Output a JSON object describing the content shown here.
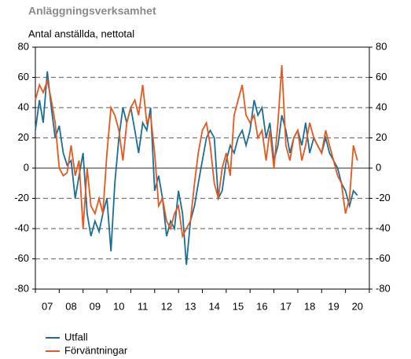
{
  "chart_data": {
    "type": "line",
    "title": "Anläggningsverksamhet",
    "subtitle": "Antal anställda, nettotal",
    "x": [
      2007,
      2007.17,
      2007.33,
      2007.5,
      2007.67,
      2007.83,
      2008,
      2008.17,
      2008.33,
      2008.5,
      2008.67,
      2008.83,
      2009,
      2009.17,
      2009.33,
      2009.5,
      2009.67,
      2009.83,
      2010,
      2010.17,
      2010.33,
      2010.5,
      2010.67,
      2010.83,
      2011,
      2011.17,
      2011.33,
      2011.5,
      2011.67,
      2011.83,
      2012,
      2012.17,
      2012.33,
      2012.5,
      2012.67,
      2012.83,
      2013,
      2013.17,
      2013.33,
      2013.5,
      2013.67,
      2013.83,
      2014,
      2014.17,
      2014.33,
      2014.5,
      2014.67,
      2014.83,
      2015,
      2015.17,
      2015.33,
      2015.5,
      2015.67,
      2015.83,
      2016,
      2016.17,
      2016.33,
      2016.5,
      2016.67,
      2016.83,
      2017,
      2017.17,
      2017.33,
      2017.5,
      2017.67,
      2017.83,
      2018,
      2018.17,
      2018.33,
      2018.5,
      2018.67,
      2018.83,
      2019,
      2019.17,
      2019.33,
      2019.5,
      2019.67,
      2019.83,
      2020,
      2020.17,
      2020.33,
      2020.5
    ],
    "series": [
      {
        "name": "Utfall",
        "color": "#1a6f98",
        "values": [
          25,
          45,
          30,
          64,
          40,
          20,
          28,
          10,
          2,
          5,
          -20,
          -5,
          10,
          -30,
          -45,
          -35,
          -42,
          -30,
          -20,
          -55,
          -10,
          20,
          40,
          30,
          40,
          25,
          10,
          30,
          25,
          40,
          -15,
          -5,
          -20,
          -45,
          -35,
          -40,
          -15,
          -30,
          -64,
          -35,
          -25,
          -10,
          5,
          20,
          25,
          20,
          -20,
          -15,
          5,
          15,
          10,
          20,
          25,
          15,
          25,
          45,
          35,
          40,
          20,
          30,
          5,
          15,
          35,
          25,
          10,
          20,
          25,
          15,
          30,
          10,
          20,
          15,
          10,
          20,
          10,
          5,
          0,
          -10,
          -15,
          -25,
          -15,
          -18
        ]
      },
      {
        "name": "Förväntningar",
        "color": "#e8571c",
        "values": [
          45,
          55,
          50,
          58,
          45,
          30,
          0,
          -5,
          -3,
          15,
          -5,
          5,
          -40,
          0,
          -25,
          -30,
          -20,
          -30,
          10,
          40,
          35,
          25,
          5,
          30,
          40,
          45,
          35,
          55,
          30,
          35,
          10,
          -25,
          -20,
          -35,
          -40,
          -30,
          -25,
          -45,
          -40,
          -35,
          -10,
          10,
          25,
          30,
          15,
          -10,
          -20,
          0,
          10,
          -5,
          35,
          45,
          55,
          35,
          30,
          35,
          20,
          25,
          5,
          25,
          0,
          30,
          68,
          15,
          5,
          20,
          25,
          5,
          15,
          30,
          20,
          15,
          10,
          25,
          15,
          5,
          -5,
          -10,
          -30,
          -20,
          15,
          5
        ]
      }
    ],
    "xlim": [
      2007,
      2021
    ],
    "xticks": [
      {
        "value": 2007.5,
        "label": "07"
      },
      {
        "value": 2008.5,
        "label": "08"
      },
      {
        "value": 2009.5,
        "label": "09"
      },
      {
        "value": 2010.5,
        "label": "10"
      },
      {
        "value": 2011.5,
        "label": "11"
      },
      {
        "value": 2012.5,
        "label": "12"
      },
      {
        "value": 2013.5,
        "label": "13"
      },
      {
        "value": 2014.5,
        "label": "14"
      },
      {
        "value": 2015.5,
        "label": "15"
      },
      {
        "value": 2016.5,
        "label": "16"
      },
      {
        "value": 2017.5,
        "label": "17"
      },
      {
        "value": 2018.5,
        "label": "18"
      },
      {
        "value": 2019.5,
        "label": "19"
      },
      {
        "value": 2020.5,
        "label": "20"
      }
    ],
    "ylim": [
      -80,
      80
    ],
    "yticks": [
      -80,
      -60,
      -40,
      -20,
      0,
      20,
      40,
      60,
      80
    ],
    "grid": true
  }
}
